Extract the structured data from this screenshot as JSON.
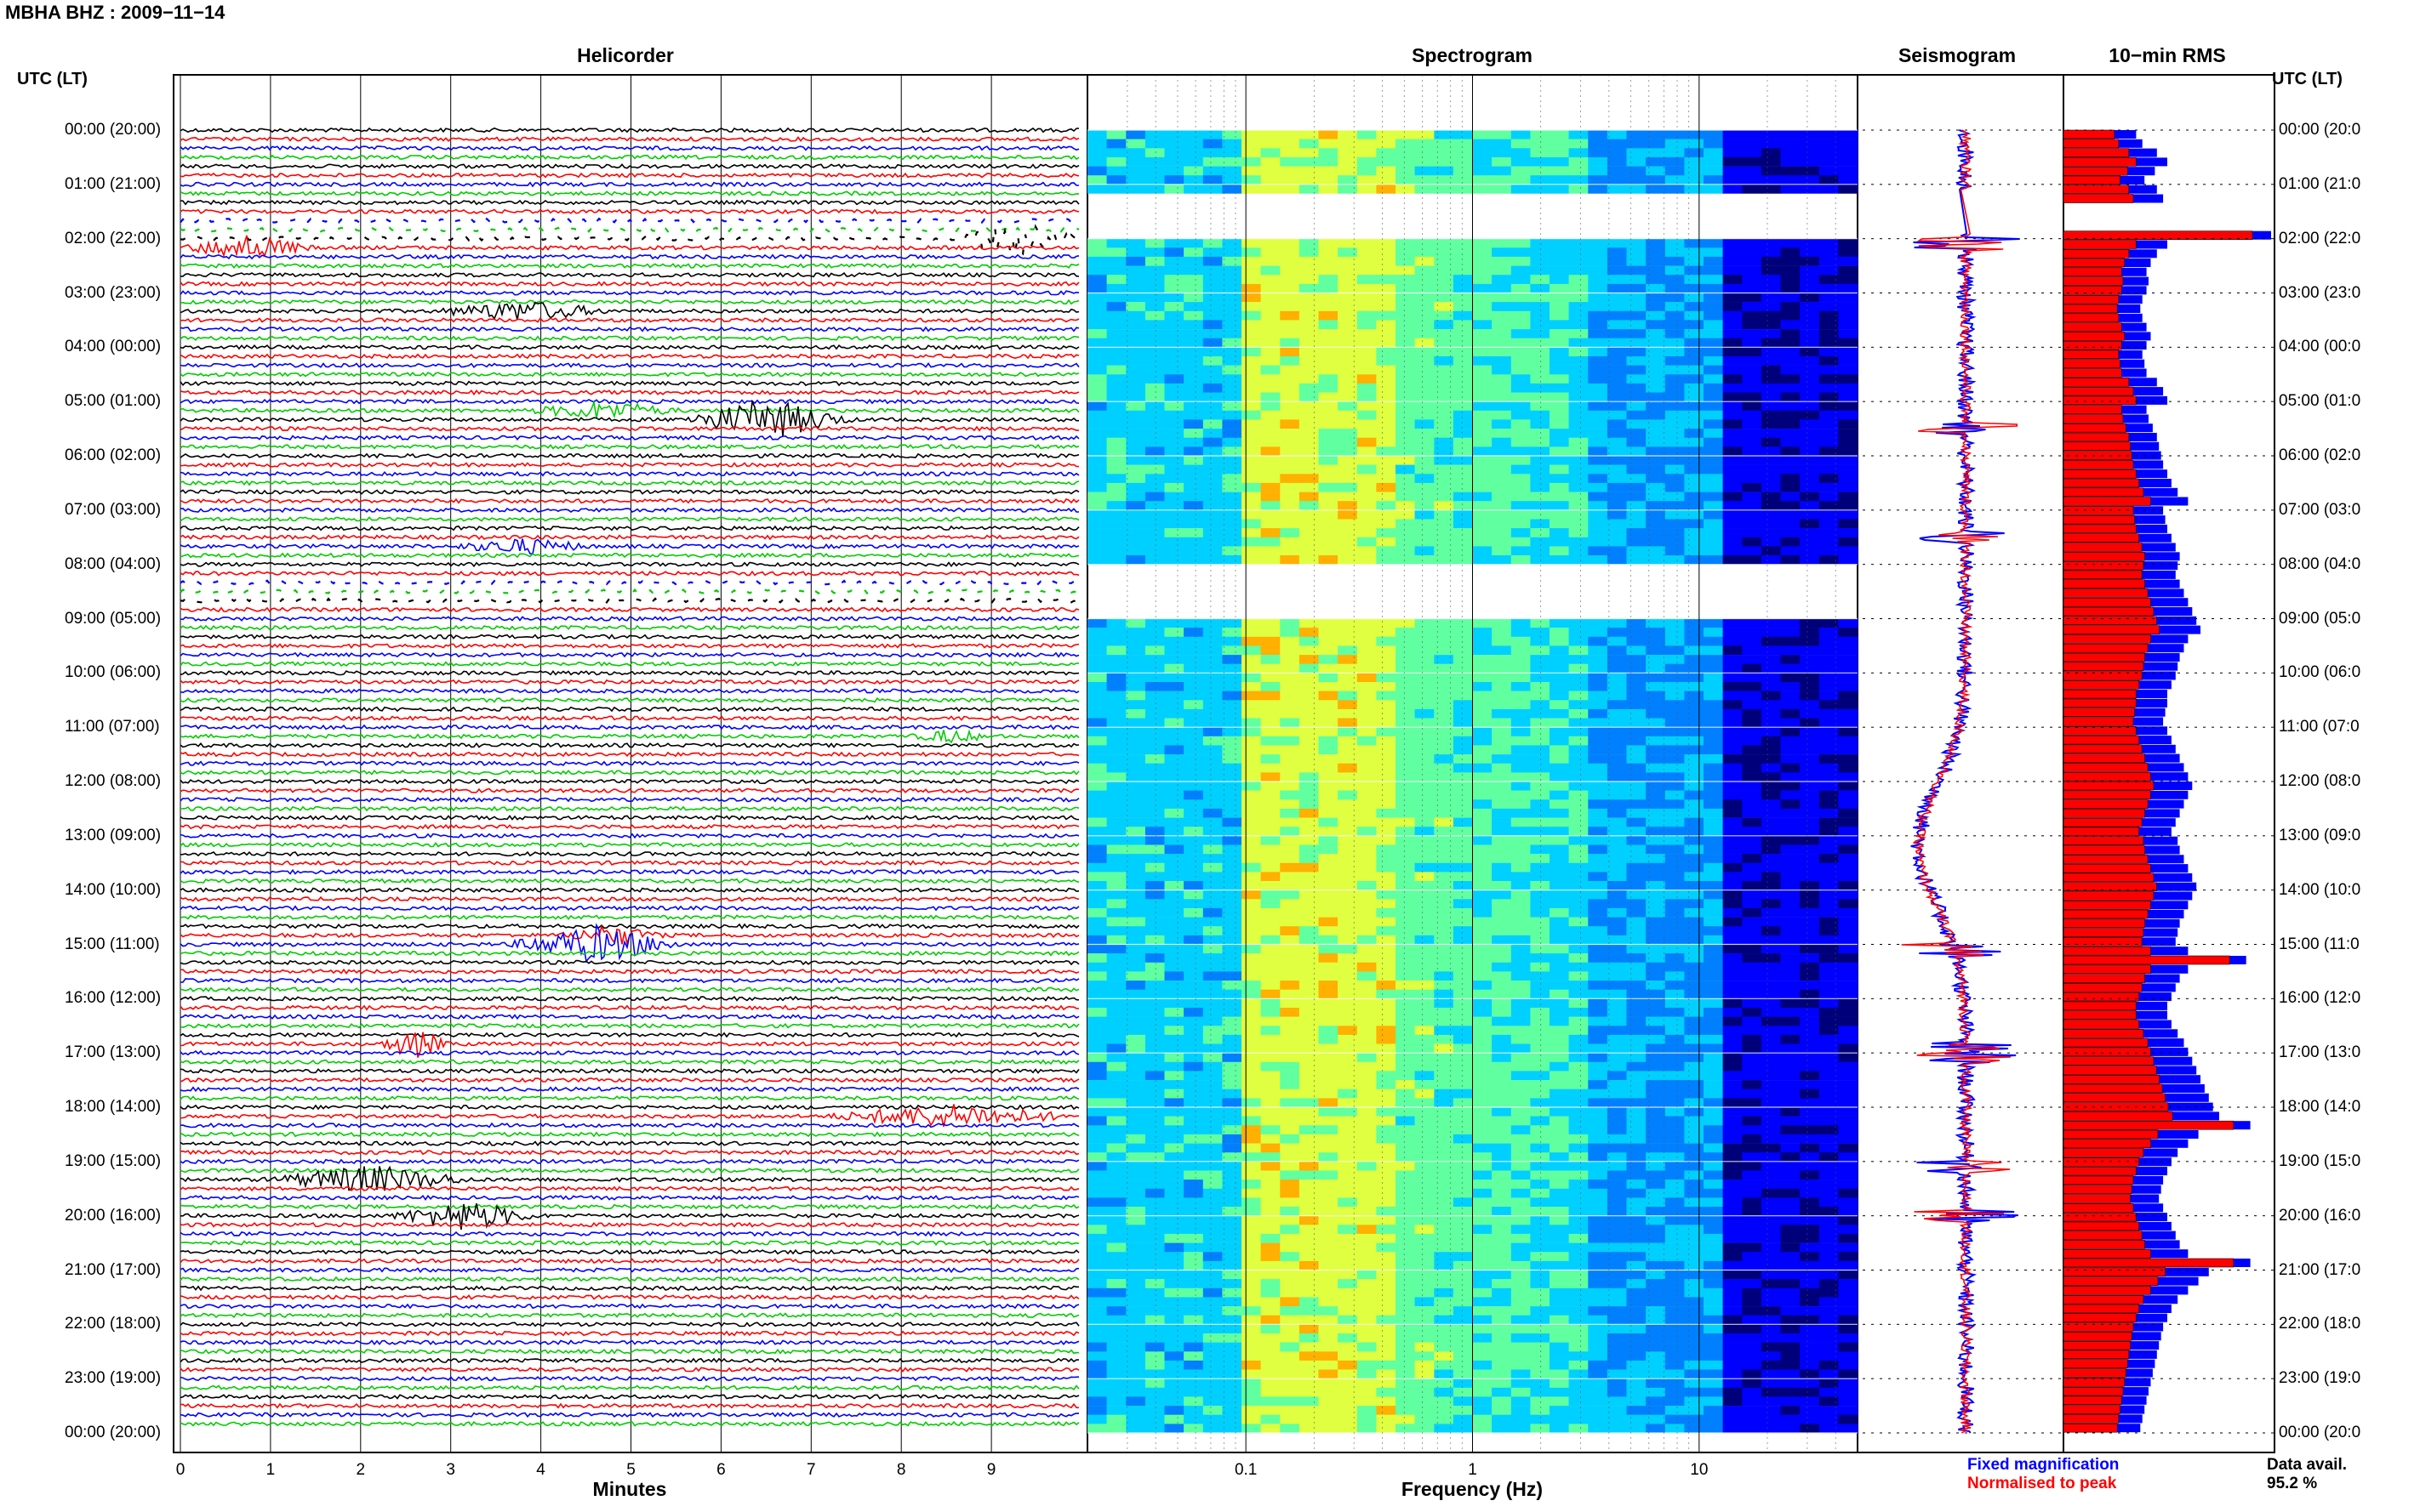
{
  "title": "MBHA BHZ : 2009−11−14",
  "panels": {
    "helicorder": "Helicorder",
    "spectrogram": "Spectrogram",
    "seismogram": "Seismogram",
    "rms": "10−min RMS"
  },
  "utc_label_left": "UTC (LT)",
  "utc_label_right": "UTC (LT)",
  "time_labels": [
    "00:00 (20:00)",
    "01:00 (21:00)",
    "02:00 (22:00)",
    "03:00 (23:00)",
    "04:00 (00:00)",
    "05:00 (01:00)",
    "06:00 (02:00)",
    "07:00 (03:00)",
    "08:00 (04:00)",
    "09:00 (05:00)",
    "10:00 (06:00)",
    "11:00 (07:00)",
    "12:00 (08:00)",
    "13:00 (09:00)",
    "14:00 (10:00)",
    "15:00 (11:00)",
    "16:00 (12:00)",
    "17:00 (13:00)",
    "18:00 (14:00)",
    "19:00 (15:00)",
    "20:00 (16:00)",
    "21:00 (17:00)",
    "22:00 (18:00)",
    "23:00 (19:00)",
    "00:00 (20:00)"
  ],
  "time_labels_right": [
    "00:00 (20:0",
    "01:00 (21:0",
    "02:00 (22:0",
    "03:00 (23:0",
    "04:00 (00:0",
    "05:00 (01:0",
    "06:00 (02:0",
    "07:00 (03:0",
    "08:00 (04:0",
    "09:00 (05:0",
    "10:00 (06:0",
    "11:00 (07:0",
    "12:00 (08:0",
    "13:00 (09:0",
    "14:00 (10:0",
    "15:00 (11:0",
    "16:00 (12:0",
    "17:00 (13:0",
    "18:00 (14:0",
    "19:00 (15:0",
    "20:00 (16:0",
    "21:00 (17:0",
    "22:00 (18:0",
    "23:00 (19:0",
    "00:00 (20:0"
  ],
  "minutes_ticks": [
    "0",
    "1",
    "2",
    "3",
    "4",
    "5",
    "6",
    "7",
    "8",
    "9"
  ],
  "minutes_label": "Minutes",
  "freq_ticks": [
    "0.1",
    "1",
    "10"
  ],
  "freq_label": "Frequency (Hz)",
  "legend": {
    "fixed": "Fixed magnification",
    "normalised": "Normalised to peak",
    "fixed_color": "#0000ff",
    "normalised_color": "#ff0000"
  },
  "data_avail_label": "Data avail.",
  "data_avail_value": "95.2 %",
  "colors": {
    "trace_cycle": [
      "#000000",
      "#ff0000",
      "#0000ff",
      "#00cc00"
    ]
  },
  "chart_data": {
    "type": "heatmap",
    "helicorder": {
      "x_range_minutes": [
        0,
        10
      ],
      "rows_per_hour": 6,
      "hours": 24,
      "gap_hours": [
        1.6,
        8.3
      ],
      "events": [
        {
          "hour": 2.1,
          "start_min": 0,
          "end_min": 1.5,
          "amp": 1.0
        },
        {
          "hour": 2.0,
          "start_min": 8.6,
          "end_min": 10,
          "amp": 1.4
        },
        {
          "hour": 3.3,
          "start_min": 2.8,
          "end_min": 4.8,
          "amp": 0.8
        },
        {
          "hour": 5.3,
          "start_min": 5.5,
          "end_min": 7.5,
          "amp": 1.6
        },
        {
          "hour": 5.2,
          "start_min": 3.8,
          "end_min": 5.6,
          "amp": 0.7
        },
        {
          "hour": 7.7,
          "start_min": 3.0,
          "end_min": 4.6,
          "amp": 0.6
        },
        {
          "hour": 11.1,
          "start_min": 8.1,
          "end_min": 9.0,
          "amp": 0.5
        },
        {
          "hour": 15.0,
          "start_min": 3.6,
          "end_min": 5.6,
          "amp": 1.5
        },
        {
          "hour": 14.8,
          "start_min": 4.2,
          "end_min": 5.4,
          "amp": 0.8
        },
        {
          "hour": 16.9,
          "start_min": 2.2,
          "end_min": 3.0,
          "amp": 1.2
        },
        {
          "hour": 18.1,
          "start_min": 7.1,
          "end_min": 10,
          "amp": 0.9
        },
        {
          "hour": 19.3,
          "start_min": 0.9,
          "end_min": 3.3,
          "amp": 1.1
        },
        {
          "hour": 20.0,
          "start_min": 2.3,
          "end_min": 4.0,
          "amp": 1.2
        }
      ]
    },
    "spectrogram": {
      "x_scale": "log",
      "x_range_hz": [
        0.02,
        50
      ],
      "gap_hours": [
        1.1,
        1.9,
        8.0,
        9.0
      ],
      "colormap": [
        "#00007a",
        "#0000ff",
        "#0080ff",
        "#00d0ff",
        "#60ffa0",
        "#e0ff40",
        "#ffb000"
      ]
    },
    "seismogram": {
      "series": [
        {
          "name": "Fixed magnification",
          "color": "#0000ff"
        },
        {
          "name": "Normalised to peak",
          "color": "#ff0000"
        }
      ]
    },
    "rms": {
      "unit_bins_per_hour": 6,
      "fixed": [
        0.35,
        0.38,
        0.45,
        0.5,
        0.44,
        0.39,
        0.45,
        0.48,
        0.55,
        0.62,
        0.6,
        1.0,
        0.5,
        0.45,
        0.42,
        0.4,
        0.41,
        0.4,
        0.38,
        0.37,
        0.38,
        0.4,
        0.42,
        0.4,
        0.38,
        0.39,
        0.4,
        0.45,
        0.48,
        0.5,
        0.4,
        0.41,
        0.43,
        0.45,
        0.46,
        0.47,
        0.48,
        0.5,
        0.52,
        0.55,
        0.6,
        0.48,
        0.49,
        0.5,
        0.52,
        0.54,
        0.56,
        0.55,
        0.54,
        0.56,
        0.58,
        0.6,
        0.62,
        0.64,
        0.66,
        0.6,
        0.58,
        0.56,
        0.55,
        0.54,
        0.52,
        0.5,
        0.5,
        0.49,
        0.48,
        0.5,
        0.52,
        0.54,
        0.56,
        0.58,
        0.6,
        0.62,
        0.6,
        0.58,
        0.56,
        0.54,
        0.52,
        0.55,
        0.56,
        0.58,
        0.6,
        0.62,
        0.64,
        0.62,
        0.6,
        0.58,
        0.56,
        0.55,
        0.54,
        0.6,
        0.88,
        0.6,
        0.56,
        0.54,
        0.52,
        0.5,
        0.5,
        0.52,
        0.55,
        0.58,
        0.6,
        0.62,
        0.64,
        0.66,
        0.68,
        0.7,
        0.72,
        0.75,
        0.9,
        0.65,
        0.6,
        0.55,
        0.52,
        0.5,
        0.48,
        0.47,
        0.46,
        0.48,
        0.5,
        0.52,
        0.54,
        0.56,
        0.6,
        0.9,
        0.7,
        0.65,
        0.6,
        0.55,
        0.52,
        0.5,
        0.48,
        0.47,
        0.46,
        0.45,
        0.44,
        0.43,
        0.42,
        0.41,
        0.4,
        0.39,
        0.38,
        0.37
      ]
    }
  }
}
